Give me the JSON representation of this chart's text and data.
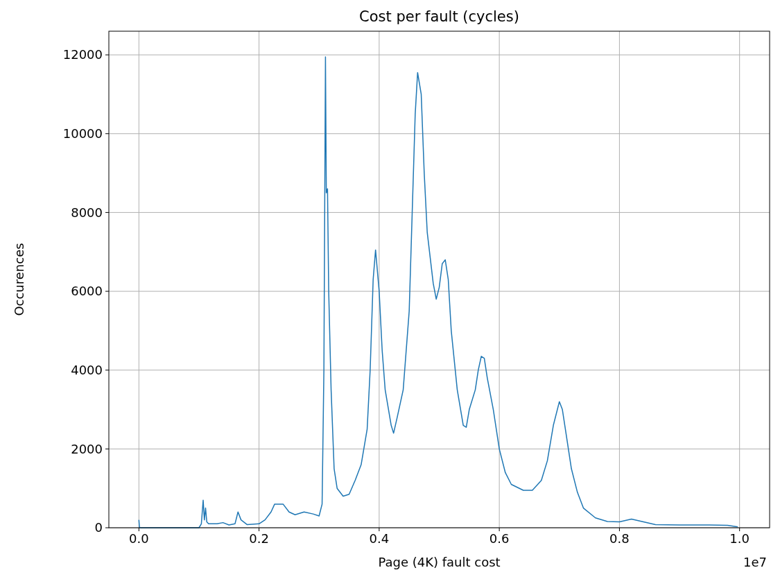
{
  "chart_data": {
    "type": "line",
    "title": "Cost per fault (cycles)",
    "xlabel": "Page (4K) fault cost",
    "ylabel": "Occurences",
    "annotations": [
      "1e7"
    ],
    "x": [
      0,
      0.001,
      0.1,
      0.104,
      0.107,
      0.109,
      0.111,
      0.113,
      0.116,
      0.13,
      0.14,
      0.15,
      0.16,
      0.165,
      0.17,
      0.18,
      0.2,
      0.21,
      0.22,
      0.226,
      0.24,
      0.25,
      0.26,
      0.275,
      0.29,
      0.3,
      0.305,
      0.308,
      0.3106,
      0.312,
      0.314,
      0.316,
      0.32,
      0.325,
      0.33,
      0.34,
      0.35,
      0.36,
      0.37,
      0.38,
      0.385,
      0.39,
      0.394,
      0.4,
      0.405,
      0.41,
      0.42,
      0.424,
      0.43,
      0.44,
      0.45,
      0.455,
      0.46,
      0.464,
      0.47,
      0.475,
      0.48,
      0.49,
      0.495,
      0.5,
      0.505,
      0.51,
      0.515,
      0.52,
      0.53,
      0.54,
      0.545,
      0.55,
      0.56,
      0.565,
      0.57,
      0.575,
      0.58,
      0.59,
      0.6,
      0.61,
      0.62,
      0.64,
      0.655,
      0.67,
      0.68,
      0.69,
      0.7,
      0.705,
      0.71,
      0.72,
      0.73,
      0.74,
      0.76,
      0.78,
      0.8,
      0.82,
      0.84,
      0.86,
      0.9,
      0.95,
      0.98,
      0.997
    ],
    "series": [
      {
        "color": "#1f77b4",
        "values": [
          200,
          0,
          0,
          100,
          700,
          200,
          500,
          150,
          100,
          100,
          130,
          70,
          100,
          400,
          200,
          80,
          100,
          200,
          400,
          600,
          600,
          400,
          330,
          400,
          350,
          300,
          600,
          4000,
          11950,
          8500,
          8600,
          6000,
          3500,
          1500,
          1000,
          800,
          850,
          1200,
          1600,
          2500,
          4000,
          6300,
          7050,
          6000,
          4500,
          3500,
          2600,
          2400,
          2800,
          3500,
          5500,
          8000,
          10500,
          11550,
          11000,
          9000,
          7500,
          6200,
          5800,
          6100,
          6700,
          6800,
          6300,
          5000,
          3500,
          2600,
          2550,
          3000,
          3500,
          4000,
          4350,
          4300,
          3800,
          3000,
          2000,
          1400,
          1100,
          950,
          950,
          1200,
          1700,
          2600,
          3200,
          3000,
          2500,
          1500,
          900,
          500,
          250,
          160,
          150,
          220,
          150,
          80,
          70,
          70,
          60,
          20
        ]
      }
    ],
    "xlim": [
      -0.05,
      1.05
    ],
    "xticks": [
      {
        "value": 0,
        "label": "0.0"
      },
      0.2,
      0.4,
      0.6,
      0.8,
      {
        "value": 1,
        "label": "1.0"
      }
    ],
    "ylim": [
      0,
      12600
    ],
    "yticks": [
      0,
      2000,
      4000,
      6000,
      8000,
      10000,
      12000
    ],
    "grid": true
  }
}
